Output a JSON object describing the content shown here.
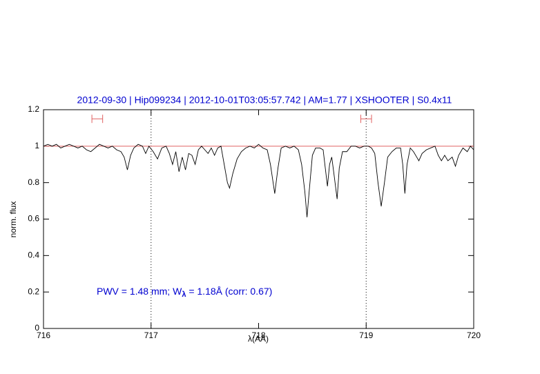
{
  "chart_data": {
    "type": "line",
    "title": "2012-09-30 | Hip099234 | 2012-10-01T03:05:57.742 | AM=1.77 | XSHOOTER | S0.4x11",
    "xlabel": "λ(AA)",
    "ylabel": "norm. flux",
    "annotation": [
      "PWV = 1.48 mm; W",
      "λ",
      " = 1.18Å (corr: 0.67)"
    ],
    "xlim": [
      716,
      720
    ],
    "ylim": [
      0,
      1.2
    ],
    "xticks": [
      716,
      717,
      718,
      719,
      720
    ],
    "yticks": [
      0,
      0.2,
      0.4,
      0.6,
      0.8,
      1,
      1.2
    ],
    "continuum": 1,
    "continuum_color": "#e06060",
    "vlines": [
      717,
      719
    ],
    "intervals": [
      {
        "x": [
          716.45,
          716.55
        ],
        "y": 1.15
      },
      {
        "x": [
          718.95,
          719.05
        ],
        "y": 1.15
      }
    ],
    "interval_color": "#e06060",
    "series": [
      {
        "color": "#000000",
        "x": [
          716.0,
          716.04,
          716.08,
          716.12,
          716.16,
          716.2,
          716.24,
          716.28,
          716.32,
          716.36,
          716.4,
          716.44,
          716.48,
          716.52,
          716.56,
          716.6,
          716.64,
          716.68,
          716.72,
          716.75,
          716.78,
          716.81,
          716.84,
          716.88,
          716.92,
          716.95,
          716.98,
          717.02,
          717.06,
          717.1,
          717.14,
          717.17,
          717.2,
          717.23,
          717.26,
          717.29,
          717.32,
          717.35,
          717.38,
          717.41,
          717.44,
          717.47,
          717.5,
          717.53,
          717.56,
          717.59,
          717.62,
          717.65,
          717.68,
          717.71,
          717.73,
          717.76,
          717.8,
          717.84,
          717.88,
          717.92,
          717.96,
          718.0,
          718.04,
          718.08,
          718.11,
          718.15,
          718.18,
          718.21,
          718.25,
          718.29,
          718.33,
          718.37,
          718.4,
          718.43,
          718.45,
          718.47,
          718.5,
          718.53,
          718.57,
          718.6,
          718.62,
          718.64,
          718.66,
          718.68,
          718.7,
          718.73,
          718.75,
          718.78,
          718.82,
          718.86,
          718.9,
          718.94,
          718.98,
          719.02,
          719.05,
          719.08,
          719.11,
          719.14,
          719.17,
          719.2,
          719.24,
          719.28,
          719.32,
          719.34,
          719.36,
          719.38,
          719.41,
          719.44,
          719.47,
          719.49,
          719.52,
          719.56,
          719.6,
          719.64,
          719.67,
          719.7,
          719.73,
          719.76,
          719.8,
          719.83,
          719.86,
          719.9,
          719.94,
          719.97,
          720.0
        ],
        "values": [
          1.0,
          1.01,
          1.0,
          1.01,
          0.99,
          1.0,
          1.01,
          1.0,
          0.99,
          1.0,
          0.98,
          0.97,
          0.99,
          1.01,
          1.0,
          0.99,
          1.0,
          0.98,
          0.97,
          0.94,
          0.87,
          0.95,
          0.99,
          1.01,
          1.0,
          0.96,
          1.0,
          0.97,
          0.93,
          0.99,
          1.0,
          0.96,
          0.9,
          0.97,
          0.86,
          0.94,
          0.87,
          0.96,
          0.95,
          0.9,
          0.98,
          1.0,
          0.98,
          0.96,
          0.99,
          0.95,
          0.99,
          1.0,
          0.9,
          0.8,
          0.77,
          0.85,
          0.93,
          0.97,
          0.99,
          1.0,
          0.99,
          1.01,
          0.99,
          0.98,
          0.9,
          0.74,
          0.88,
          0.99,
          1.0,
          0.99,
          1.0,
          0.98,
          0.9,
          0.75,
          0.61,
          0.75,
          0.95,
          0.99,
          0.99,
          0.98,
          0.88,
          0.78,
          0.9,
          0.94,
          0.85,
          0.71,
          0.88,
          0.97,
          0.97,
          1.0,
          1.0,
          0.99,
          1.0,
          1.0,
          0.99,
          0.96,
          0.8,
          0.67,
          0.8,
          0.94,
          0.97,
          0.99,
          0.99,
          0.9,
          0.74,
          0.9,
          0.99,
          0.97,
          0.94,
          0.92,
          0.96,
          0.98,
          0.99,
          1.0,
          0.95,
          0.92,
          0.95,
          0.92,
          0.94,
          0.89,
          0.95,
          0.99,
          0.97,
          1.0,
          0.98
        ]
      }
    ]
  }
}
